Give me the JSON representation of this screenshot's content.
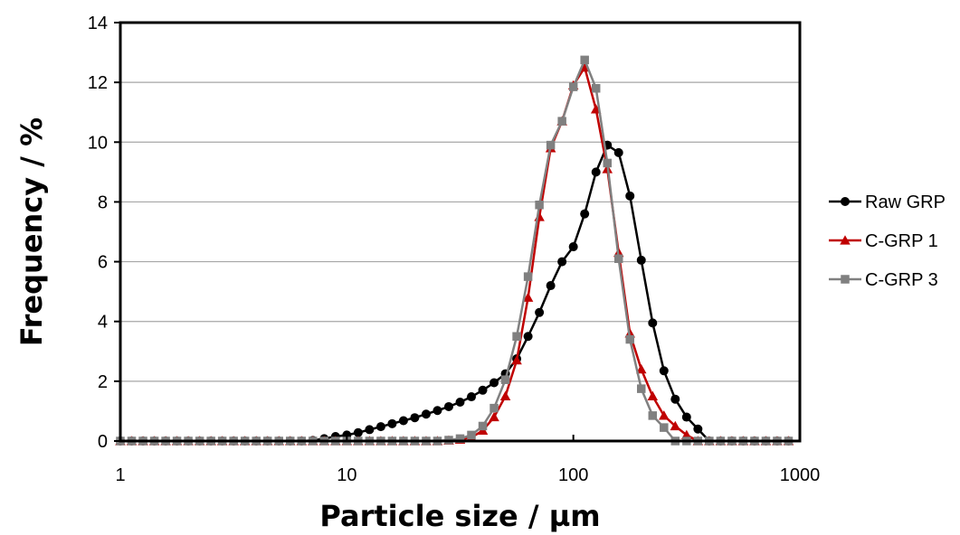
{
  "chart_data": {
    "type": "line",
    "xlabel": "Particle size / µm",
    "ylabel": "Frequency / %",
    "x_scale": "log",
    "xlim": [
      1,
      1000
    ],
    "ylim": [
      0,
      14
    ],
    "x_ticks": [
      1,
      10,
      100,
      1000
    ],
    "y_ticks": [
      0,
      2,
      4,
      6,
      8,
      10,
      12,
      14
    ],
    "x_tick_labels": [
      "1",
      "10",
      "100",
      "1000"
    ],
    "y_tick_labels": [
      "0",
      "2",
      "4",
      "6",
      "8",
      "10",
      "12",
      "14"
    ],
    "grid": "horizontal",
    "legend": "right",
    "x": [
      1,
      1.122,
      1.259,
      1.413,
      1.585,
      1.778,
      1.995,
      2.239,
      2.512,
      2.818,
      3.162,
      3.548,
      3.981,
      4.467,
      5.012,
      5.623,
      6.31,
      7.079,
      7.943,
      8.913,
      10,
      11.22,
      12.59,
      14.13,
      15.85,
      17.78,
      19.95,
      22.39,
      25.12,
      28.18,
      31.62,
      35.48,
      39.81,
      44.67,
      50.12,
      56.23,
      63.1,
      70.79,
      79.43,
      89.13,
      100,
      112.2,
      125.9,
      141.3,
      158.5,
      177.8,
      199.5,
      223.9,
      251.2,
      281.8,
      316.2,
      354.8,
      398.1,
      446.7,
      501.2,
      562.3,
      631,
      707.9,
      794.3,
      891.3
    ],
    "series": [
      {
        "name": "Raw GRP",
        "color": "#000000",
        "marker": "circle",
        "values": [
          0,
          0,
          0,
          0,
          0,
          0,
          0,
          0,
          0,
          0,
          0,
          0,
          0,
          0,
          0,
          0,
          0,
          0.02,
          0.08,
          0.15,
          0.2,
          0.28,
          0.38,
          0.48,
          0.58,
          0.68,
          0.78,
          0.9,
          1.02,
          1.15,
          1.3,
          1.48,
          1.7,
          1.95,
          2.25,
          2.75,
          3.5,
          4.3,
          5.2,
          6.0,
          6.5,
          7.6,
          9.0,
          9.9,
          9.65,
          8.2,
          6.05,
          3.95,
          2.35,
          1.4,
          0.8,
          0.4,
          0,
          0,
          0,
          0,
          0,
          0,
          0,
          0
        ]
      },
      {
        "name": "C-GRP 1",
        "color": "#c00000",
        "marker": "triangle",
        "values": [
          0,
          0,
          0,
          0,
          0,
          0,
          0,
          0,
          0,
          0,
          0,
          0,
          0,
          0,
          0,
          0,
          0,
          0,
          0,
          0,
          0,
          0,
          0,
          0,
          0,
          0,
          0,
          0,
          0,
          0.02,
          0.05,
          0.12,
          0.35,
          0.8,
          1.5,
          2.7,
          4.8,
          7.5,
          9.8,
          10.7,
          11.9,
          12.5,
          11.1,
          9.1,
          6.3,
          3.6,
          2.4,
          1.5,
          0.85,
          0.5,
          0.2,
          0,
          0,
          0,
          0,
          0,
          0,
          0,
          0,
          0
        ]
      },
      {
        "name": "C-GRP 3",
        "color": "#808080",
        "marker": "square",
        "values": [
          0,
          0,
          0,
          0,
          0,
          0,
          0,
          0,
          0,
          0,
          0,
          0,
          0,
          0,
          0,
          0,
          0,
          0,
          0,
          0,
          0,
          0,
          0,
          0,
          0,
          0,
          0,
          0,
          0,
          0.03,
          0.08,
          0.2,
          0.5,
          1.1,
          2.05,
          3.5,
          5.5,
          7.9,
          9.9,
          10.7,
          11.85,
          12.75,
          11.8,
          9.3,
          6.1,
          3.4,
          1.75,
          0.85,
          0.45,
          0,
          0,
          0,
          0,
          0,
          0,
          0,
          0,
          0,
          0,
          0
        ]
      }
    ]
  }
}
